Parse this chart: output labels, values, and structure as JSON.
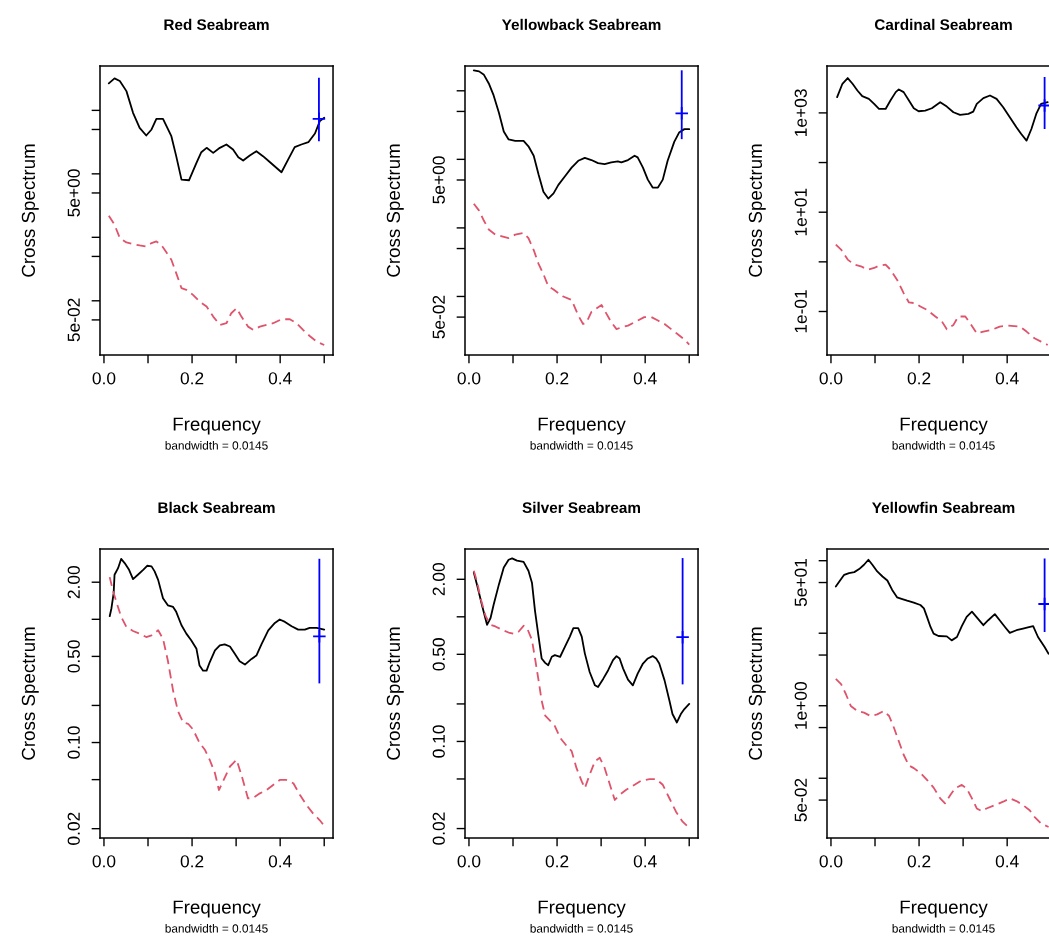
{
  "chart_data": [
    {
      "type": "line",
      "title": "Red Seabream",
      "xlabel": "Frequency",
      "ylabel": "Cross Spectrum",
      "annotations": [
        "bandwidth = 0.0145"
      ],
      "log": "y",
      "xlim": [
        -0.009,
        0.52
      ],
      "ylim": [
        0.014,
        500
      ],
      "xticks": [
        {
          "value": 0,
          "label": "0.0"
        },
        {
          "value": 0.1,
          "label": null
        },
        {
          "value": 0.2,
          "label": "0.2"
        },
        {
          "value": 0.3,
          "label": null
        },
        {
          "value": 0.4,
          "label": "0.4"
        },
        {
          "value": 0.5,
          "label": null
        }
      ],
      "yticks": [
        {
          "value": 100,
          "label": null
        },
        {
          "value": 50,
          "label": null
        },
        {
          "value": 10,
          "label": null
        },
        {
          "value": 5,
          "label": "5e+00"
        },
        {
          "value": 1,
          "label": null
        },
        {
          "value": 0.5,
          "label": null
        },
        {
          "value": 0.1,
          "label": null
        },
        {
          "value": 0.05,
          "label": "5e-02"
        }
      ],
      "series": [
        {
          "color": "#000000",
          "line_style": "solid",
          "x": [
            0.011,
            0.024,
            0.036,
            0.051,
            0.066,
            0.081,
            0.096,
            0.108,
            0.119,
            0.134,
            0.153,
            0.164,
            0.176,
            0.193,
            0.21,
            0.221,
            0.233,
            0.248,
            0.263,
            0.278,
            0.293,
            0.305,
            0.316,
            0.331,
            0.346,
            0.361,
            0.377,
            0.403,
            0.418,
            0.433,
            0.448,
            0.464,
            0.479,
            0.49,
            0.5
          ],
          "values": [
            266,
            319,
            290,
            201,
            91.6,
            53.1,
            40.2,
            50.0,
            73.7,
            73.7,
            39.2,
            19.0,
            8.12,
            7.92,
            14.9,
            21.9,
            25.7,
            21.4,
            25.7,
            29.0,
            24.2,
            18.3,
            16.2,
            19.4,
            22.7,
            19.0,
            15.2,
            10.6,
            16.8,
            26.3,
            29.0,
            31.5,
            43.2,
            67.7,
            76.4
          ]
        },
        {
          "color": "#df536b",
          "line_style": "dashed",
          "x": [
            0.011,
            0.024,
            0.036,
            0.051,
            0.066,
            0.081,
            0.096,
            0.108,
            0.119,
            0.13,
            0.142,
            0.153,
            0.164,
            0.176,
            0.187,
            0.202,
            0.217,
            0.233,
            0.248,
            0.263,
            0.278,
            0.289,
            0.301,
            0.312,
            0.327,
            0.339,
            0.354,
            0.369,
            0.384,
            0.403,
            0.422,
            0.437,
            0.452,
            0.467,
            0.483,
            0.5
          ],
          "values": [
            2.19,
            1.58,
            0.974,
            0.832,
            0.783,
            0.746,
            0.719,
            0.812,
            0.863,
            0.764,
            0.578,
            0.443,
            0.273,
            0.158,
            0.149,
            0.124,
            0.0974,
            0.0812,
            0.0564,
            0.0417,
            0.0443,
            0.0637,
            0.0764,
            0.0564,
            0.0392,
            0.0348,
            0.0392,
            0.0417,
            0.0443,
            0.0512,
            0.0512,
            0.0443,
            0.0348,
            0.0279,
            0.0227,
            0.0201
          ]
        },
        {
          "type": "scatter",
          "marker": "cross",
          "color": "#0000ff",
          "x": [
            0.488
          ],
          "values": [
            73.7
          ],
          "errors": [
            [
              32.7,
              327
            ]
          ]
        }
      ]
    },
    {
      "type": "line",
      "title": "Yellowback Seabream",
      "xlabel": "Frequency",
      "ylabel": "Cross Spectrum",
      "annotations": [
        "bandwidth = 0.0145"
      ],
      "log": "y",
      "xlim": [
        -0.009,
        0.52
      ],
      "ylim": [
        0.014,
        230
      ],
      "xticks": [
        {
          "value": 0,
          "label": "0.0"
        },
        {
          "value": 0.1,
          "label": null
        },
        {
          "value": 0.2,
          "label": "0.2"
        },
        {
          "value": 0.3,
          "label": null
        },
        {
          "value": 0.4,
          "label": "0.4"
        },
        {
          "value": 0.5,
          "label": null
        }
      ],
      "yticks": [
        {
          "value": 100,
          "label": null
        },
        {
          "value": 50,
          "label": null
        },
        {
          "value": 10,
          "label": null
        },
        {
          "value": 5,
          "label": "5e+00"
        },
        {
          "value": 1,
          "label": null
        },
        {
          "value": 0.5,
          "label": null
        },
        {
          "value": 0.1,
          "label": null
        },
        {
          "value": 0.05,
          "label": "5e-02"
        }
      ],
      "series": [
        {
          "color": "#000000",
          "line_style": "solid",
          "x": [
            0.011,
            0.023,
            0.034,
            0.045,
            0.056,
            0.068,
            0.079,
            0.09,
            0.105,
            0.124,
            0.135,
            0.147,
            0.158,
            0.169,
            0.18,
            0.192,
            0.203,
            0.218,
            0.233,
            0.248,
            0.263,
            0.278,
            0.293,
            0.308,
            0.323,
            0.338,
            0.346,
            0.361,
            0.376,
            0.383,
            0.395,
            0.406,
            0.417,
            0.429,
            0.44,
            0.451,
            0.466,
            0.477,
            0.489,
            0.5
          ],
          "values": [
            199,
            192,
            171,
            128,
            85.5,
            48.0,
            25.5,
            19.5,
            18.6,
            18.6,
            15.5,
            11.3,
            6.01,
            3.38,
            2.68,
            3.19,
            4.25,
            5.68,
            7.58,
            9.54,
            10.5,
            9.77,
            8.8,
            8.5,
            9.01,
            9.32,
            9.01,
            9.77,
            11.3,
            10.7,
            7.58,
            5.06,
            3.88,
            3.88,
            5.06,
            9.54,
            18.0,
            24.6,
            27.6,
            27.6
          ]
        },
        {
          "color": "#df536b",
          "line_style": "dashed",
          "x": [
            0.011,
            0.023,
            0.034,
            0.045,
            0.06,
            0.075,
            0.09,
            0.105,
            0.124,
            0.135,
            0.147,
            0.158,
            0.169,
            0.18,
            0.192,
            0.203,
            0.214,
            0.233,
            0.248,
            0.259,
            0.267,
            0.278,
            0.301,
            0.312,
            0.323,
            0.335,
            0.346,
            0.361,
            0.376,
            0.398,
            0.414,
            0.429,
            0.444,
            0.459,
            0.474,
            0.489,
            0.5
          ],
          "values": [
            2.25,
            1.79,
            1.27,
            0.949,
            0.798,
            0.753,
            0.711,
            0.798,
            0.845,
            0.711,
            0.475,
            0.299,
            0.212,
            0.141,
            0.126,
            0.112,
            0.0999,
            0.089,
            0.053,
            0.0397,
            0.0421,
            0.0595,
            0.0749,
            0.0561,
            0.0421,
            0.0334,
            0.0354,
            0.0375,
            0.0421,
            0.05,
            0.05,
            0.0445,
            0.0397,
            0.0334,
            0.0281,
            0.0236,
            0.0199
          ]
        },
        {
          "type": "scatter",
          "marker": "cross",
          "color": "#0000ff",
          "x": [
            0.483
          ],
          "values": [
            46.9
          ],
          "errors": [
            [
              19.7,
              199
            ]
          ]
        }
      ]
    },
    {
      "type": "line",
      "title": "Cardinal Seabream",
      "xlabel": "Frequency",
      "ylabel": "Cross Spectrum",
      "annotations": [
        "bandwidth = 0.0145"
      ],
      "log": "y",
      "xlim": [
        -0.009,
        0.498
      ],
      "ylim": [
        0.0133,
        8800
      ],
      "xticks": [
        {
          "value": 0,
          "label": "0.0"
        },
        {
          "value": 0.1,
          "label": null
        },
        {
          "value": 0.2,
          "label": "0.2"
        },
        {
          "value": 0.3,
          "label": null
        },
        {
          "value": 0.4,
          "label": "0.4"
        }
      ],
      "yticks": [
        {
          "value": 1000,
          "label": "1e+03"
        },
        {
          "value": 100,
          "label": null
        },
        {
          "value": 10,
          "label": "1e+01"
        },
        {
          "value": 1,
          "label": null
        },
        {
          "value": 0.1,
          "label": "1e-01"
        }
      ],
      "series": [
        {
          "color": "#000000",
          "line_style": "solid",
          "x": [
            0.014,
            0.026,
            0.038,
            0.049,
            0.06,
            0.071,
            0.086,
            0.098,
            0.109,
            0.124,
            0.135,
            0.147,
            0.154,
            0.165,
            0.177,
            0.188,
            0.199,
            0.214,
            0.229,
            0.248,
            0.263,
            0.278,
            0.293,
            0.312,
            0.323,
            0.331,
            0.346,
            0.361,
            0.376,
            0.391,
            0.406,
            0.421,
            0.432,
            0.444,
            0.455,
            0.466,
            0.477,
            0.492
          ],
          "values": [
            2080,
            3860,
            5030,
            3860,
            2830,
            2170,
            1920,
            1520,
            1200,
            1200,
            1780,
            2620,
            2970,
            2620,
            1780,
            1240,
            1080,
            1110,
            1240,
            1640,
            1340,
            1030,
            911,
            954,
            1060,
            1520,
            1980,
            2240,
            1920,
            1300,
            817,
            513,
            376,
            276,
            474,
            954,
            1520,
            1640
          ]
        },
        {
          "color": "#df536b",
          "line_style": "dashed",
          "x": [
            0.011,
            0.023,
            0.038,
            0.053,
            0.068,
            0.083,
            0.098,
            0.109,
            0.124,
            0.135,
            0.15,
            0.165,
            0.177,
            0.192,
            0.203,
            0.218,
            0.237,
            0.252,
            0.263,
            0.278,
            0.289,
            0.305,
            0.316,
            0.331,
            0.346,
            0.365,
            0.383,
            0.402,
            0.429,
            0.444,
            0.462,
            0.477,
            0.492
          ],
          "values": [
            2.23,
            1.77,
            1.11,
            0.88,
            0.814,
            0.697,
            0.753,
            0.84,
            0.88,
            0.697,
            0.437,
            0.235,
            0.152,
            0.147,
            0.126,
            0.108,
            0.0792,
            0.0628,
            0.0439,
            0.0537,
            0.0792,
            0.0792,
            0.0581,
            0.0364,
            0.0394,
            0.0426,
            0.0497,
            0.0521,
            0.0497,
            0.0394,
            0.0289,
            0.0247,
            0.0212
          ]
        },
        {
          "type": "scatter",
          "marker": "cross",
          "color": "#0000ff",
          "x": [
            0.485
          ],
          "values": [
            1410
          ],
          "errors": [
            [
              474,
              5270
            ]
          ]
        }
      ]
    },
    {
      "type": "line",
      "title": "Black Seabream",
      "xlabel": "Frequency",
      "ylabel": "Cross Spectrum",
      "annotations": [
        "bandwidth = 0.0145"
      ],
      "log": "y",
      "xlim": [
        -0.009,
        0.52
      ],
      "ylim": [
        0.0168,
        3.72
      ],
      "xticks": [
        {
          "value": 0,
          "label": "0.0"
        },
        {
          "value": 0.1,
          "label": null
        },
        {
          "value": 0.2,
          "label": "0.2"
        },
        {
          "value": 0.3,
          "label": null
        },
        {
          "value": 0.4,
          "label": "0.4"
        },
        {
          "value": 0.5,
          "label": null
        }
      ],
      "yticks": [
        {
          "value": 2,
          "label": "2.00"
        },
        {
          "value": 1,
          "label": null
        },
        {
          "value": 0.5,
          "label": "0.50"
        },
        {
          "value": 0.2,
          "label": null
        },
        {
          "value": 0.1,
          "label": "0.10"
        },
        {
          "value": 0.05,
          "label": null
        },
        {
          "value": 0.02,
          "label": "0.02"
        }
      ],
      "series": [
        {
          "color": "#000000",
          "line_style": "solid",
          "x": [
            0.013,
            0.017,
            0.022,
            0.024,
            0.032,
            0.039,
            0.047,
            0.057,
            0.066,
            0.077,
            0.089,
            0.098,
            0.108,
            0.115,
            0.123,
            0.134,
            0.145,
            0.157,
            0.164,
            0.176,
            0.187,
            0.198,
            0.21,
            0.217,
            0.225,
            0.233,
            0.24,
            0.252,
            0.263,
            0.274,
            0.286,
            0.297,
            0.308,
            0.32,
            0.335,
            0.346,
            0.358,
            0.373,
            0.388,
            0.399,
            0.411,
            0.426,
            0.441,
            0.456,
            0.467,
            0.483,
            0.5
          ],
          "values": [
            1.06,
            1.23,
            1.63,
            2.3,
            2.6,
            3.09,
            2.86,
            2.52,
            2.12,
            2.3,
            2.52,
            2.72,
            2.69,
            2.45,
            2.09,
            1.48,
            1.3,
            1.26,
            1.15,
            0.895,
            0.765,
            0.675,
            0.576,
            0.421,
            0.383,
            0.383,
            0.448,
            0.559,
            0.614,
            0.626,
            0.602,
            0.525,
            0.457,
            0.429,
            0.477,
            0.508,
            0.633,
            0.814,
            0.935,
            0.996,
            0.953,
            0.878,
            0.825,
            0.825,
            0.851,
            0.851,
            0.825
          ]
        },
        {
          "color": "#df536b",
          "line_style": "dashed",
          "x": [
            0.013,
            0.02,
            0.028,
            0.039,
            0.051,
            0.066,
            0.081,
            0.096,
            0.108,
            0.123,
            0.134,
            0.145,
            0.157,
            0.168,
            0.18,
            0.191,
            0.202,
            0.217,
            0.229,
            0.24,
            0.252,
            0.261,
            0.27,
            0.286,
            0.301,
            0.312,
            0.327,
            0.339,
            0.354,
            0.369,
            0.384,
            0.399,
            0.414,
            0.43,
            0.445,
            0.46,
            0.475,
            0.49,
            0.502
          ],
          "values": [
            2.2,
            1.73,
            1.39,
            1.05,
            0.867,
            0.804,
            0.765,
            0.718,
            0.741,
            0.814,
            0.696,
            0.463,
            0.263,
            0.18,
            0.145,
            0.142,
            0.128,
            0.0993,
            0.0875,
            0.0725,
            0.0564,
            0.0412,
            0.0482,
            0.0639,
            0.0725,
            0.0547,
            0.0352,
            0.0356,
            0.0387,
            0.0412,
            0.0453,
            0.0497,
            0.0497,
            0.0467,
            0.0375,
            0.031,
            0.0265,
            0.0234,
            0.0206
          ]
        },
        {
          "type": "scatter",
          "marker": "cross",
          "color": "#0000ff",
          "x": [
            0.489
          ],
          "values": [
            0.727
          ],
          "errors": [
            [
              0.302,
              3.1
            ]
          ]
        }
      ]
    },
    {
      "type": "line",
      "title": "Silver Seabream",
      "xlabel": "Frequency",
      "ylabel": "Cross Spectrum",
      "annotations": [
        "bandwidth = 0.0145"
      ],
      "log": "y",
      "xlim": [
        -0.009,
        0.52
      ],
      "ylim": [
        0.0168,
        3.5
      ],
      "xticks": [
        {
          "value": 0,
          "label": "0.0"
        },
        {
          "value": 0.1,
          "label": null
        },
        {
          "value": 0.2,
          "label": "0.2"
        },
        {
          "value": 0.3,
          "label": null
        },
        {
          "value": 0.4,
          "label": "0.4"
        },
        {
          "value": 0.5,
          "label": null
        }
      ],
      "yticks": [
        {
          "value": 2,
          "label": "2.00"
        },
        {
          "value": 1,
          "label": null
        },
        {
          "value": 0.5,
          "label": "0.50"
        },
        {
          "value": 0.2,
          "label": null
        },
        {
          "value": 0.1,
          "label": "0.10"
        },
        {
          "value": 0.05,
          "label": null
        },
        {
          "value": 0.02,
          "label": "0.02"
        }
      ],
      "series": [
        {
          "color": "#000000",
          "line_style": "solid",
          "x": [
            0.011,
            0.019,
            0.03,
            0.041,
            0.049,
            0.056,
            0.068,
            0.079,
            0.09,
            0.098,
            0.109,
            0.124,
            0.135,
            0.143,
            0.15,
            0.158,
            0.165,
            0.173,
            0.18,
            0.188,
            0.195,
            0.207,
            0.218,
            0.229,
            0.237,
            0.248,
            0.256,
            0.263,
            0.274,
            0.286,
            0.293,
            0.305,
            0.316,
            0.327,
            0.335,
            0.342,
            0.35,
            0.361,
            0.372,
            0.383,
            0.395,
            0.406,
            0.417,
            0.425,
            0.432,
            0.444,
            0.455,
            0.462,
            0.472,
            0.481,
            0.489,
            0.5
          ],
          "values": [
            2.27,
            1.77,
            1.22,
            0.863,
            0.978,
            1.25,
            1.82,
            2.49,
            2.87,
            2.94,
            2.82,
            2.76,
            2.34,
            1.88,
            1.11,
            0.694,
            0.463,
            0.427,
            0.409,
            0.478,
            0.493,
            0.478,
            0.576,
            0.694,
            0.811,
            0.811,
            0.694,
            0.509,
            0.361,
            0.282,
            0.273,
            0.319,
            0.373,
            0.449,
            0.484,
            0.463,
            0.384,
            0.313,
            0.282,
            0.35,
            0.422,
            0.463,
            0.484,
            0.463,
            0.422,
            0.309,
            0.213,
            0.166,
            0.142,
            0.166,
            0.182,
            0.2
          ]
        },
        {
          "color": "#df536b",
          "line_style": "dashed",
          "x": [
            0.011,
            0.019,
            0.026,
            0.038,
            0.049,
            0.06,
            0.075,
            0.09,
            0.102,
            0.113,
            0.124,
            0.132,
            0.143,
            0.15,
            0.158,
            0.165,
            0.173,
            0.184,
            0.195,
            0.207,
            0.222,
            0.233,
            0.244,
            0.256,
            0.263,
            0.274,
            0.286,
            0.297,
            0.308,
            0.32,
            0.331,
            0.342,
            0.357,
            0.376,
            0.391,
            0.41,
            0.425,
            0.44,
            0.455,
            0.47,
            0.485,
            0.5
          ],
          "values": [
            2.34,
            1.88,
            1.42,
            1.01,
            0.863,
            0.837,
            0.786,
            0.748,
            0.73,
            0.762,
            0.847,
            0.811,
            0.652,
            0.463,
            0.309,
            0.213,
            0.161,
            0.147,
            0.133,
            0.107,
            0.0919,
            0.0837,
            0.0613,
            0.0478,
            0.0422,
            0.0541,
            0.0694,
            0.0739,
            0.0613,
            0.0449,
            0.0339,
            0.0373,
            0.0409,
            0.0449,
            0.0484,
            0.0499,
            0.0499,
            0.0449,
            0.035,
            0.0273,
            0.0227,
            0.0203
          ]
        },
        {
          "type": "scatter",
          "marker": "cross",
          "color": "#0000ff",
          "x": [
            0.485
          ],
          "values": [
            0.686
          ],
          "errors": [
            [
              0.287,
              2.96
            ]
          ]
        }
      ]
    },
    {
      "type": "line",
      "title": "Yellowfin Seabream",
      "xlabel": "Frequency",
      "ylabel": "Cross Spectrum",
      "annotations": [
        "bandwidth = 0.0145"
      ],
      "log": "y",
      "xlim": [
        -0.009,
        0.498
      ],
      "ylim": [
        0.015,
        145
      ],
      "xticks": [
        {
          "value": 0,
          "label": "0.0"
        },
        {
          "value": 0.1,
          "label": null
        },
        {
          "value": 0.2,
          "label": "0.2"
        },
        {
          "value": 0.3,
          "label": null
        },
        {
          "value": 0.4,
          "label": "0.4"
        }
      ],
      "yticks": [
        {
          "value": 100,
          "label": null
        },
        {
          "value": 50,
          "label": "5e+01"
        },
        {
          "value": 10,
          "label": null
        },
        {
          "value": 5,
          "label": null
        },
        {
          "value": 1,
          "label": "1e+00"
        },
        {
          "value": 0.5,
          "label": null
        },
        {
          "value": 0.1,
          "label": null
        },
        {
          "value": 0.05,
          "label": "5e-02"
        }
      ],
      "series": [
        {
          "color": "#000000",
          "line_style": "solid",
          "x": [
            0.011,
            0.019,
            0.03,
            0.041,
            0.053,
            0.064,
            0.075,
            0.085,
            0.094,
            0.105,
            0.117,
            0.128,
            0.139,
            0.15,
            0.162,
            0.173,
            0.188,
            0.203,
            0.211,
            0.218,
            0.226,
            0.233,
            0.244,
            0.263,
            0.274,
            0.286,
            0.297,
            0.308,
            0.32,
            0.331,
            0.346,
            0.357,
            0.372,
            0.383,
            0.395,
            0.406,
            0.421,
            0.436,
            0.447,
            0.459,
            0.47,
            0.485,
            0.494
          ],
          "values": [
            44.0,
            51.6,
            63.9,
            67.4,
            69.6,
            76.6,
            88.0,
            103,
            88.0,
            71.1,
            60.6,
            53.3,
            39.5,
            31.3,
            29.6,
            28.1,
            26.4,
            24.5,
            22.0,
            16.8,
            12.2,
            9.87,
            9.16,
            9.06,
            7.97,
            8.87,
            12.5,
            16.8,
            19.8,
            16.5,
            12.9,
            15.1,
            18.3,
            15.1,
            12.2,
            10.1,
            11.0,
            11.6,
            12.0,
            12.5,
            8.87,
            6.44,
            5.2
          ]
        },
        {
          "color": "#df536b",
          "line_style": "dashed",
          "x": [
            0.011,
            0.023,
            0.034,
            0.045,
            0.06,
            0.075,
            0.09,
            0.105,
            0.12,
            0.132,
            0.143,
            0.154,
            0.165,
            0.177,
            0.188,
            0.203,
            0.218,
            0.233,
            0.248,
            0.259,
            0.271,
            0.282,
            0.297,
            0.308,
            0.32,
            0.331,
            0.342,
            0.353,
            0.372,
            0.391,
            0.406,
            0.421,
            0.436,
            0.451,
            0.462,
            0.477,
            0.494
          ],
          "values": [
            2.34,
            1.99,
            1.44,
            0.994,
            0.847,
            0.803,
            0.722,
            0.761,
            0.847,
            0.722,
            0.497,
            0.324,
            0.211,
            0.15,
            0.138,
            0.118,
            0.095,
            0.0743,
            0.0528,
            0.045,
            0.0587,
            0.0727,
            0.0809,
            0.0727,
            0.0528,
            0.0383,
            0.0352,
            0.0383,
            0.0426,
            0.0475,
            0.0528,
            0.0485,
            0.0426,
            0.0363,
            0.0294,
            0.0237,
            0.0213
          ]
        },
        {
          "type": "scatter",
          "marker": "cross",
          "color": "#0000ff",
          "x": [
            0.485
          ],
          "values": [
            25.3
          ],
          "errors": [
            [
              10.4,
              107
            ]
          ]
        }
      ]
    }
  ]
}
